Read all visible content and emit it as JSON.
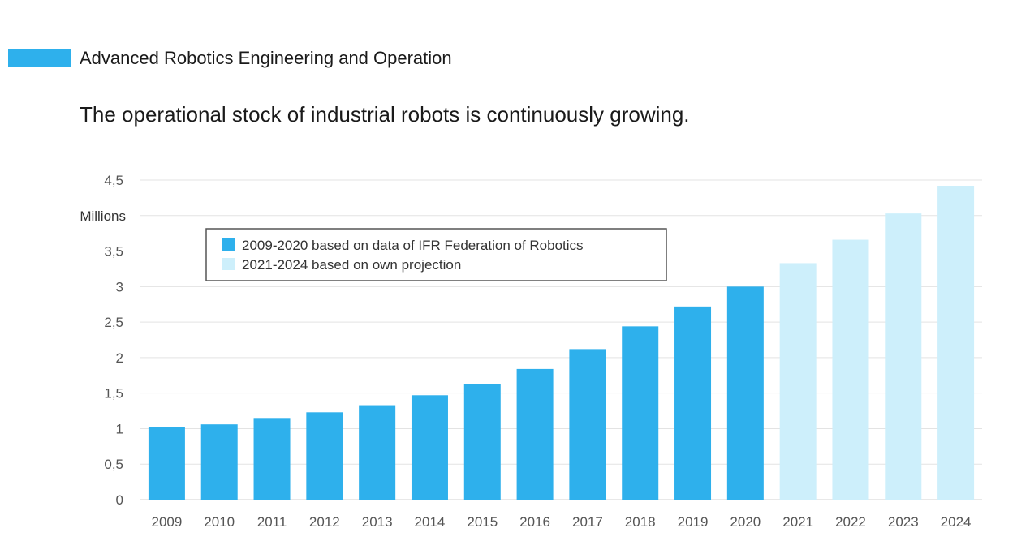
{
  "header": {
    "section_title": "Advanced Robotics Engineering and Operation",
    "accent_color": "#2eb0ec"
  },
  "chart_data": {
    "type": "bar",
    "title": "The operational stock of industrial robots is continuously growing.",
    "ylabel": "Millions",
    "xlabel": "",
    "ylim": [
      0,
      4.5
    ],
    "y_ticks": [
      {
        "value": 0,
        "label": "0"
      },
      {
        "value": 0.5,
        "label": "0,5"
      },
      {
        "value": 1,
        "label": "1"
      },
      {
        "value": 1.5,
        "label": "1,5"
      },
      {
        "value": 2,
        "label": "2"
      },
      {
        "value": 2.5,
        "label": "2,5"
      },
      {
        "value": 3,
        "label": "3"
      },
      {
        "value": 3.5,
        "label": "3,5"
      },
      {
        "value": 4.5,
        "label": "4,5"
      }
    ],
    "categories": [
      "2009",
      "2010",
      "2011",
      "2012",
      "2013",
      "2014",
      "2015",
      "2016",
      "2017",
      "2018",
      "2019",
      "2020",
      "2021",
      "2022",
      "2023",
      "2024"
    ],
    "values": [
      1.02,
      1.06,
      1.15,
      1.23,
      1.33,
      1.47,
      1.63,
      1.84,
      2.12,
      2.44,
      2.72,
      3.0,
      3.33,
      3.66,
      4.03,
      4.42
    ],
    "series": [
      {
        "name": "2009-2020 based on data of IFR Federation of Robotics",
        "range": [
          "2009",
          "2020"
        ],
        "color": "#2eb0ec"
      },
      {
        "name": "2021-2024 based on own projection",
        "range": [
          "2021",
          "2024"
        ],
        "color": "#cdeffb"
      }
    ],
    "grid": true,
    "legend_position": "top-left"
  }
}
